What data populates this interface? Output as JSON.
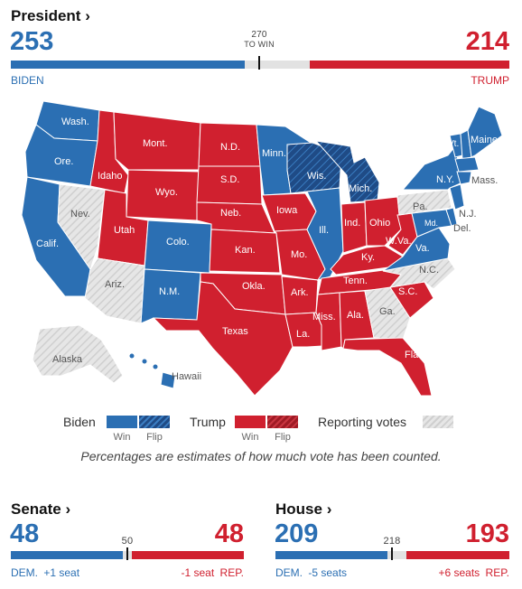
{
  "president": {
    "title": "President",
    "arrow": "›",
    "dem_total": "253",
    "rep_total": "214",
    "threshold_number": "270",
    "threshold_label": "TO WIN",
    "dem_name": "BIDEN",
    "rep_name": "TRUMP",
    "dem_share": 0.47,
    "rep_share": 0.4
  },
  "colors": {
    "dem": "#2b6fb3",
    "dem_flip": "#1f4b86",
    "rep": "#d0202f",
    "rep_flip": "#9f1a24",
    "reporting": "#e2e2e2",
    "state_border": "#ffffff"
  },
  "map": {
    "labels": {
      "wash": "Wash.",
      "ore": "Ore.",
      "calif": "Calif.",
      "nev": "Nev.",
      "idaho": "Idaho",
      "mont": "Mont.",
      "wyo": "Wyo.",
      "utah": "Utah",
      "colo": "Colo.",
      "ariz": "Ariz.",
      "nm": "N.M.",
      "nd": "N.D.",
      "sd": "S.D.",
      "neb": "Neb.",
      "kan": "Kan.",
      "okla": "Okla.",
      "texas": "Texas",
      "minn": "Minn.",
      "iowa": "Iowa",
      "mo": "Mo.",
      "ark": "Ark.",
      "la": "La.",
      "wis": "Wis.",
      "ill": "Ill.",
      "mich": "Mich.",
      "ind": "Ind.",
      "ohio": "Ohio",
      "ky": "Ky.",
      "tenn": "Tenn.",
      "miss": "Miss.",
      "ala": "Ala.",
      "ga": "Ga.",
      "fla": "Fla.",
      "sc": "S.C.",
      "nc": "N.C.",
      "va": "Va.",
      "wva": "W.Va.",
      "pa": "Pa.",
      "ny": "N.Y.",
      "vt": "Vt.",
      "maine": "Maine",
      "mass": "Mass.",
      "nj": "N.J.",
      "del": "Del.",
      "md": "Md.",
      "alaska": "Alaska",
      "hawaii": "Hawaii"
    }
  },
  "legend": {
    "biden": "Biden",
    "trump": "Trump",
    "reporting": "Reporting votes",
    "win": "Win",
    "flip": "Flip"
  },
  "note": "Percentages are estimates of how much vote has been counted.",
  "senate": {
    "title": "Senate",
    "arrow": "›",
    "dem_total": "48",
    "rep_total": "48",
    "threshold": "50",
    "dem_label": "DEM.",
    "dem_change": "+1 seat",
    "rep_label": "REP.",
    "rep_change": "-1 seat",
    "dem_share": 0.48,
    "rep_share": 0.48
  },
  "house": {
    "title": "House",
    "arrow": "›",
    "dem_total": "209",
    "rep_total": "193",
    "threshold": "218",
    "dem_label": "DEM.",
    "dem_change": "-5 seats",
    "rep_label": "REP.",
    "rep_change": "+6 seats",
    "dem_share": 0.48,
    "rep_share": 0.44
  }
}
